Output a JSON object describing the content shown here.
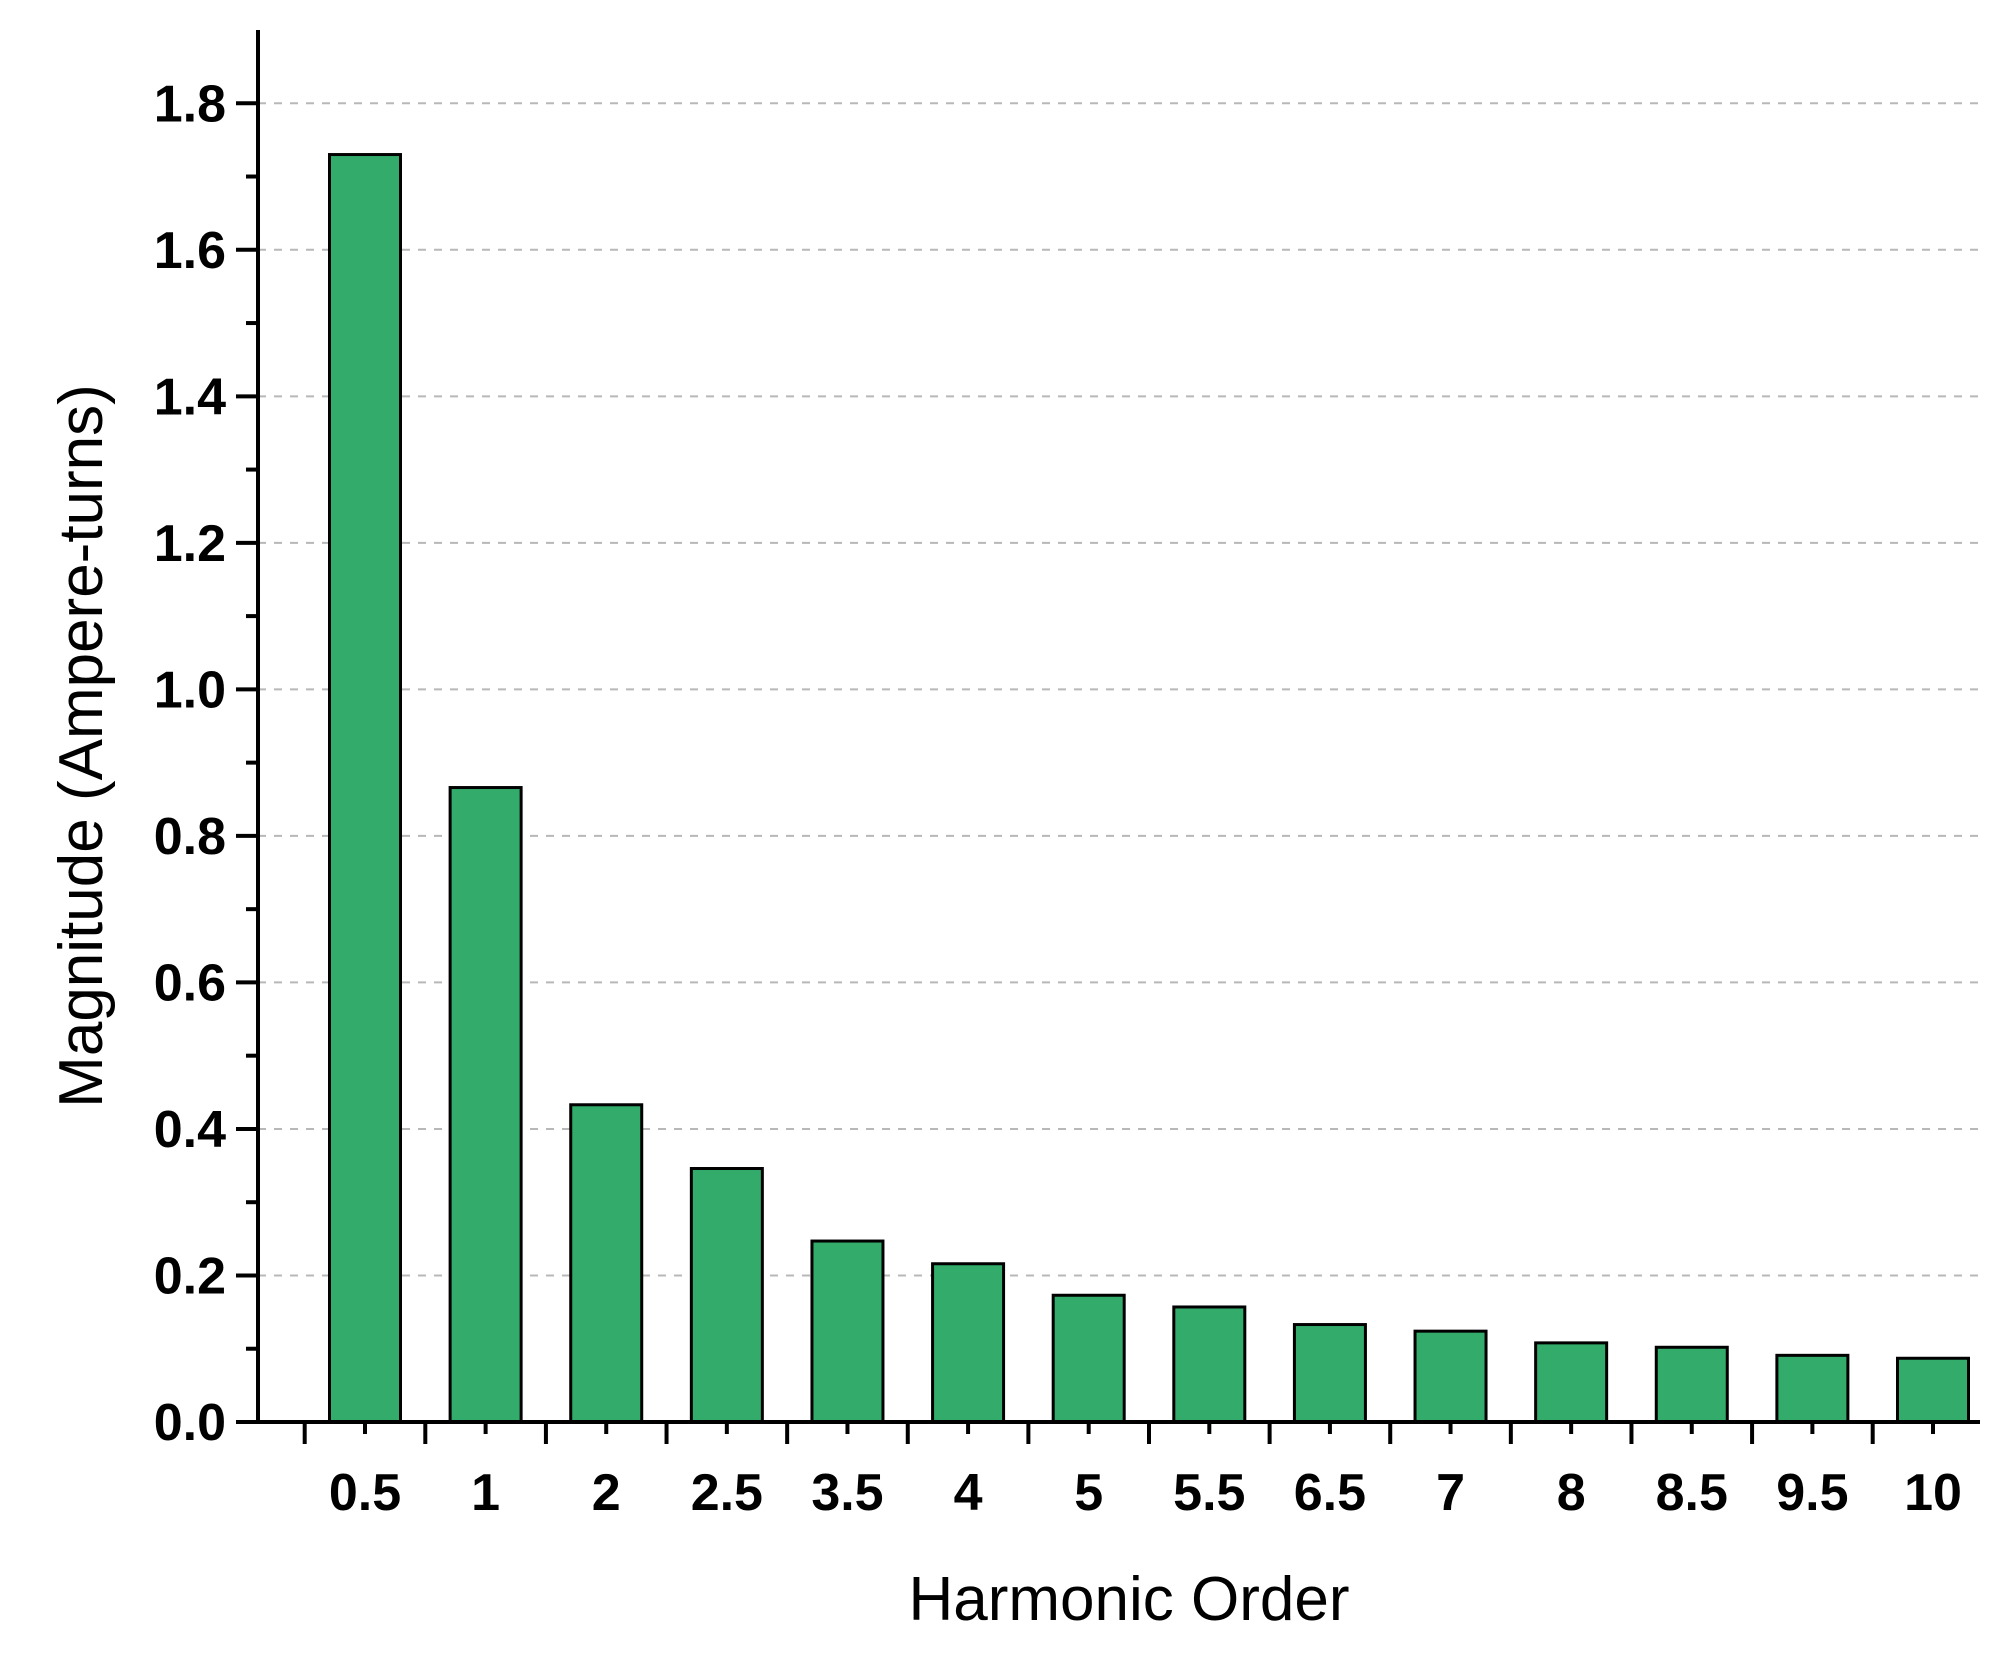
{
  "chart_data": {
    "type": "bar",
    "title": "",
    "xlabel": "Harmonic Order",
    "ylabel": "Magnitude (Ampere-turns)",
    "categories": [
      "0.5",
      "1",
      "2",
      "2.5",
      "3.5",
      "4",
      "5",
      "5.5",
      "6.5",
      "7",
      "8",
      "8.5",
      "9.5",
      "10"
    ],
    "values": [
      1.73,
      0.866,
      0.433,
      0.346,
      0.247,
      0.216,
      0.173,
      0.157,
      0.133,
      0.124,
      0.108,
      0.102,
      0.091,
      0.087
    ],
    "ylim": [
      0,
      1.9
    ],
    "yticks": [
      "0.0",
      "0.2",
      "0.4",
      "0.6",
      "0.8",
      "1.0",
      "1.2",
      "1.4",
      "1.6",
      "1.8"
    ],
    "grid": "horizontal dashed",
    "bar_color": "#33ac6b"
  }
}
